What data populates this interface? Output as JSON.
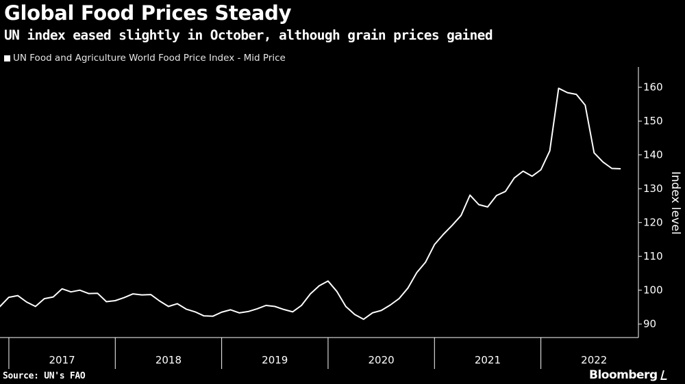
{
  "header": {
    "title": "Global Food Prices Steady",
    "subtitle": "UN index eased slightly in October, although grain prices gained"
  },
  "footer": {
    "source": "Source: UN's FAO",
    "brand": "Bloomberg"
  },
  "colors": {
    "background": "#000000",
    "line": "#ffffff",
    "axis": "#ffffff"
  },
  "chart_data": {
    "type": "line",
    "title": "Global Food Prices Steady",
    "subtitle": "UN index eased slightly in October, although grain prices gained",
    "ylabel": "Index level",
    "xlabel": "",
    "ylim": [
      86,
      166
    ],
    "xlim": [
      "2016-12",
      "2022-12"
    ],
    "yticks": [
      90,
      100,
      110,
      120,
      130,
      140,
      150,
      160
    ],
    "xtick_labels": [
      "2017",
      "2018",
      "2019",
      "2020",
      "2021",
      "2022"
    ],
    "grid": false,
    "legend_position": "top-left",
    "series": [
      {
        "name": "UN Food and Agriculture World Food Price Index - Mid Price",
        "x": [
          "2016-10",
          "2016-11",
          "2016-12",
          "2017-01",
          "2017-02",
          "2017-03",
          "2017-04",
          "2017-05",
          "2017-06",
          "2017-07",
          "2017-08",
          "2017-09",
          "2017-10",
          "2017-11",
          "2017-12",
          "2018-01",
          "2018-02",
          "2018-03",
          "2018-04",
          "2018-05",
          "2018-06",
          "2018-07",
          "2018-08",
          "2018-09",
          "2018-10",
          "2018-11",
          "2018-12",
          "2019-01",
          "2019-02",
          "2019-03",
          "2019-04",
          "2019-05",
          "2019-06",
          "2019-07",
          "2019-08",
          "2019-09",
          "2019-10",
          "2019-11",
          "2019-12",
          "2020-01",
          "2020-02",
          "2020-03",
          "2020-04",
          "2020-05",
          "2020-06",
          "2020-07",
          "2020-08",
          "2020-09",
          "2020-10",
          "2020-11",
          "2020-12",
          "2021-01",
          "2021-02",
          "2021-03",
          "2021-04",
          "2021-05",
          "2021-06",
          "2021-07",
          "2021-08",
          "2021-09",
          "2021-10",
          "2021-11",
          "2021-12",
          "2022-01",
          "2022-02",
          "2022-03",
          "2022-04",
          "2022-05",
          "2022-06",
          "2022-07",
          "2022-08",
          "2022-09",
          "2022-10"
        ],
        "values": [
          96.1,
          95.9,
          95.2,
          97.9,
          98.4,
          96.5,
          95.2,
          97.5,
          98.0,
          100.4,
          99.5,
          100.0,
          99.0,
          99.1,
          96.6,
          96.9,
          97.8,
          98.9,
          98.6,
          98.7,
          96.8,
          95.2,
          96.0,
          94.4,
          93.6,
          92.4,
          92.3,
          93.5,
          94.2,
          93.3,
          93.7,
          94.5,
          95.5,
          95.2,
          94.3,
          93.6,
          95.5,
          98.9,
          101.3,
          102.7,
          99.6,
          95.2,
          92.8,
          91.4,
          93.3,
          94.0,
          95.6,
          97.5,
          100.6,
          105.2,
          108.3,
          113.5,
          116.5,
          119.2,
          122.1,
          128.1,
          125.3,
          124.6,
          128.0,
          129.2,
          133.2,
          135.2,
          133.7,
          135.6,
          141.2,
          159.7,
          158.4,
          157.9,
          154.7,
          140.6,
          137.9,
          136.0,
          135.9
        ]
      }
    ]
  }
}
